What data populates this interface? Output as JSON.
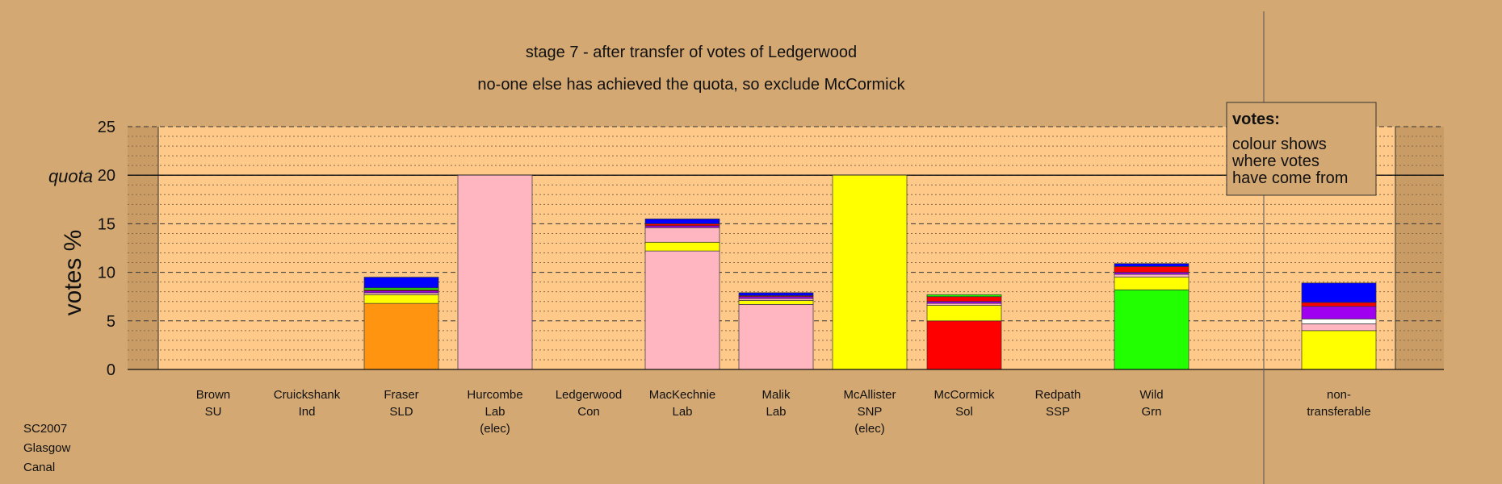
{
  "chart_data": {
    "type": "bar",
    "stacked": true,
    "title": "stage 7 - after transfer of votes of Ledgerwood",
    "subtitle": "no-one else has achieved the quota, so exclude McCormick",
    "ylabel": "votes %",
    "quota_label": "quota",
    "quota": 20,
    "ylim": [
      0,
      25
    ],
    "yticks": [
      "0",
      "5",
      "10",
      "15",
      "20",
      "25"
    ],
    "grid": "dashed major lines every 5, dotted minor lines every 1",
    "candidates": [
      {
        "name": "Brown",
        "party": "SU",
        "note": "",
        "segments": []
      },
      {
        "name": "Cruickshank",
        "party": "Ind",
        "note": "",
        "segments": []
      },
      {
        "name": "Fraser",
        "party": "SLD",
        "note": "",
        "segments": [
          {
            "value": 6.8,
            "color": "#ff9410"
          },
          {
            "value": 0.9,
            "color": "#ffff00"
          },
          {
            "value": 0.2,
            "color": "#ffb6c1"
          },
          {
            "value": 0.2,
            "color": "#a000f0"
          },
          {
            "value": 0.1,
            "color": "#ff0000"
          },
          {
            "value": 0.2,
            "color": "#22ff00"
          },
          {
            "value": 1.1,
            "color": "#0000ff"
          }
        ]
      },
      {
        "name": "Hurcombe",
        "party": "Lab",
        "note": "(elec)",
        "segments": [
          {
            "value": 20.0,
            "color": "#ffb6c1"
          }
        ]
      },
      {
        "name": "Ledgerwood",
        "party": "Con",
        "note": "",
        "segments": []
      },
      {
        "name": "MacKechnie",
        "party": "Lab",
        "note": "",
        "segments": [
          {
            "value": 12.2,
            "color": "#ffb6c1"
          },
          {
            "value": 0.9,
            "color": "#ffff00"
          },
          {
            "value": 1.5,
            "color": "#ffb6c1"
          },
          {
            "value": 0.2,
            "color": "#a000f0"
          },
          {
            "value": 0.2,
            "color": "#ff0000"
          },
          {
            "value": 0.5,
            "color": "#0000ff"
          }
        ]
      },
      {
        "name": "Malik",
        "party": "Lab",
        "note": "",
        "segments": [
          {
            "value": 6.7,
            "color": "#ffb6c1"
          },
          {
            "value": 0.4,
            "color": "#ffff00"
          },
          {
            "value": 0.2,
            "color": "#ffb6c1"
          },
          {
            "value": 0.2,
            "color": "#a000f0"
          },
          {
            "value": 0.1,
            "color": "#ff0000"
          },
          {
            "value": 0.3,
            "color": "#0000ff"
          }
        ]
      },
      {
        "name": "McAllister",
        "party": "SNP",
        "note": "(elec)",
        "segments": [
          {
            "value": 20.0,
            "color": "#ffff00"
          }
        ]
      },
      {
        "name": "McCormick",
        "party": "Sol",
        "note": "",
        "segments": [
          {
            "value": 5.0,
            "color": "#ff0000"
          },
          {
            "value": 1.6,
            "color": "#ffff00"
          },
          {
            "value": 0.2,
            "color": "#ffb6c1"
          },
          {
            "value": 0.2,
            "color": "#a000f0"
          },
          {
            "value": 0.5,
            "color": "#ff0000"
          },
          {
            "value": 0.2,
            "color": "#22ff00"
          }
        ]
      },
      {
        "name": "Redpath",
        "party": "SSP",
        "note": "",
        "segments": []
      },
      {
        "name": "Wild",
        "party": "Grn",
        "note": "",
        "segments": [
          {
            "value": 8.2,
            "color": "#22ff00"
          },
          {
            "value": 1.3,
            "color": "#ffff00"
          },
          {
            "value": 0.3,
            "color": "#ffb6c1"
          },
          {
            "value": 0.2,
            "color": "#a000f0"
          },
          {
            "value": 0.6,
            "color": "#ff0000"
          },
          {
            "value": 0.3,
            "color": "#0000ff"
          }
        ]
      },
      {
        "name": "non-",
        "party": "transferable",
        "note": "",
        "segments": [
          {
            "value": 4.0,
            "color": "#ffff00"
          },
          {
            "value": 0.7,
            "color": "#ffb6c1"
          },
          {
            "value": 0.5,
            "color": "#ffffff"
          },
          {
            "value": 1.3,
            "color": "#a000f0"
          },
          {
            "value": 0.4,
            "color": "#ff0000"
          },
          {
            "value": 2.0,
            "color": "#0000ff"
          }
        ]
      }
    ]
  },
  "legend": {
    "title": "votes:",
    "lines": [
      "colour shows",
      "where votes",
      "have come from"
    ]
  },
  "footer": {
    "lines": [
      "SC2007",
      "Glasgow",
      "Canal"
    ]
  },
  "colors": {
    "background": "#d4a872",
    "plot_area": "#ffc98a",
    "side_area": "#c79a64"
  }
}
